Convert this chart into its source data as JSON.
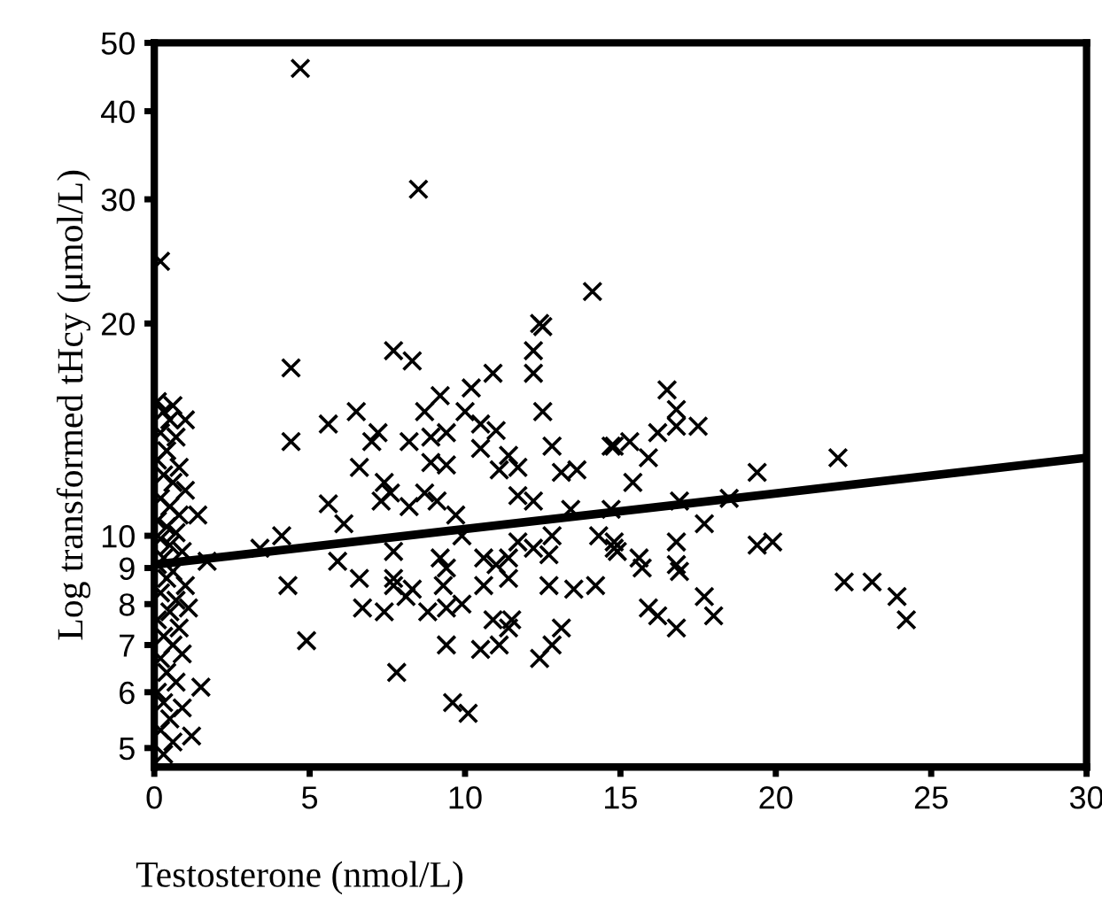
{
  "chart_data": {
    "type": "scatter",
    "xlabel": "Testosterone (nmol/L)",
    "ylabel": "Log transformed tHcy (μmol/L)",
    "xlim": [
      0,
      30
    ],
    "xticks": [
      0,
      5,
      10,
      15,
      20,
      25,
      30
    ],
    "ylim": [
      4.7,
      50
    ],
    "yticks": [
      5,
      6,
      7,
      8,
      9,
      10,
      20,
      30,
      40,
      50
    ],
    "log": true,
    "grid": false,
    "legend": false,
    "series": [
      {
        "color": "#000000",
        "marker": "cross",
        "x": [
          4.7,
          8.5,
          0.2,
          14.1,
          12.5,
          12.4,
          12.2,
          12.2,
          12.5,
          4.4,
          7.7,
          8.3,
          10.9,
          10.2,
          9.2,
          10.0,
          8.7,
          6.5,
          5.6,
          4.4,
          7.2,
          7.0,
          6.6,
          8.2,
          8.9,
          9.4,
          10.5,
          11.0,
          10.5,
          11.4,
          11.1,
          11.7,
          12.8,
          13.1,
          13.6,
          14.8,
          15.3,
          15.4,
          7.4,
          7.6,
          7.3,
          5.6,
          6.1,
          4.1,
          3.4,
          1.7,
          8.9,
          9.4,
          8.2,
          8.7,
          9.1,
          9.7,
          11.7,
          12.2,
          9.9,
          11.7,
          12.2,
          12.8,
          12.7,
          13.4,
          14.3,
          14.8,
          14.9,
          5.9,
          6.6,
          4.3,
          7.7,
          7.7,
          7.7,
          8.3,
          8.1,
          9.2,
          9.4,
          9.3,
          10.6,
          11.0,
          11.4,
          10.6,
          11.4,
          12.7,
          13.5,
          14.2,
          6.7,
          7.4,
          8.8,
          9.4,
          9.9,
          10.9,
          11.5,
          11.4,
          9.4,
          10.5,
          11.1,
          13.1,
          12.8,
          12.4,
          4.9,
          7.8,
          9.6,
          10.1,
          16.5,
          16.8,
          16.8,
          17.5,
          16.2,
          14.7,
          15.9,
          19.4,
          22.0,
          14.7,
          16.9,
          18.5,
          17.7,
          14.8,
          15.6,
          15.7,
          16.8,
          16.8,
          16.9,
          19.4,
          19.9,
          17.7,
          18.0,
          15.9,
          16.2,
          16.8,
          22.2,
          23.1,
          23.9,
          24.2,
          0.6,
          1.0,
          1.4,
          1.1,
          0.9,
          1.5,
          0.9,
          1.2,
          0.6,
          0.3,
          0.1,
          0.3,
          0.5,
          0.2,
          0.7,
          0.4,
          0.1,
          0.8,
          0.3,
          0.6,
          1.0,
          0.2,
          0.5,
          0.8,
          0.1,
          0.4,
          0.7,
          0.2,
          0.5,
          0.9,
          0.3,
          0.1,
          0.6,
          0.4,
          1.0,
          0.2,
          0.7,
          0.5,
          0.1,
          0.8,
          0.3,
          0.6,
          0.2,
          0.4,
          0.7,
          0.1,
          0.3,
          0.5,
          0.2
        ],
        "values": [
          46,
          31,
          24.5,
          22.2,
          19.8,
          20,
          18.3,
          17,
          15,
          17.3,
          18.3,
          17.7,
          17,
          16.2,
          15.8,
          15,
          15,
          15,
          14.4,
          13.6,
          14,
          13.6,
          12.5,
          13.6,
          13.8,
          14.0,
          14.4,
          14.1,
          13.3,
          13.0,
          12.4,
          12.5,
          13.4,
          12.3,
          12.4,
          13.4,
          13.6,
          11.9,
          11.9,
          11.5,
          11.2,
          11.1,
          10.4,
          10.0,
          9.6,
          9.2,
          12.7,
          12.6,
          11.0,
          11.5,
          11.2,
          10.7,
          11.4,
          11.2,
          10.0,
          9.8,
          9.6,
          10.0,
          9.4,
          10.9,
          10.0,
          9.8,
          9.5,
          9.2,
          8.7,
          8.5,
          9.5,
          8.7,
          8.5,
          8.4,
          8.2,
          9.3,
          9.0,
          8.5,
          9.3,
          9.1,
          9.3,
          8.5,
          8.7,
          8.5,
          8.4,
          8.5,
          7.9,
          7.8,
          7.8,
          7.9,
          8.0,
          7.6,
          7.6,
          7.4,
          7.0,
          6.9,
          7.0,
          7.4,
          7.0,
          6.7,
          7.1,
          6.4,
          5.8,
          5.6,
          16.1,
          15.1,
          14.3,
          14.3,
          14.0,
          13.4,
          12.9,
          12.3,
          12.9,
          10.9,
          11.2,
          11.3,
          10.4,
          9.6,
          9.3,
          9.0,
          9.8,
          9.1,
          8.9,
          9.7,
          9.8,
          8.2,
          7.7,
          7.9,
          7.7,
          7.4,
          8.6,
          8.6,
          8.2,
          7.6,
          15.3,
          14.6,
          10.7,
          7.9,
          6.8,
          6.1,
          5.7,
          5.2,
          5.1,
          4.9,
          15.5,
          15.0,
          14.6,
          14.0,
          13.8,
          13.2,
          12.8,
          12.5,
          12.2,
          11.9,
          11.6,
          11.3,
          11.0,
          10.7,
          10.5,
          10.3,
          10.1,
          9.9,
          9.7,
          9.5,
          9.3,
          9.1,
          8.9,
          8.7,
          8.5,
          8.3,
          8.1,
          7.8,
          7.6,
          7.4,
          7.2,
          7.0,
          6.7,
          6.4,
          6.2,
          6.0,
          5.8,
          5.5,
          5.3
        ]
      },
      {
        "type": "line",
        "color": "#000000",
        "marker": "none",
        "line_style": "solid",
        "x": [
          0,
          30
        ],
        "values": [
          9.1,
          12.9
        ]
      }
    ]
  }
}
